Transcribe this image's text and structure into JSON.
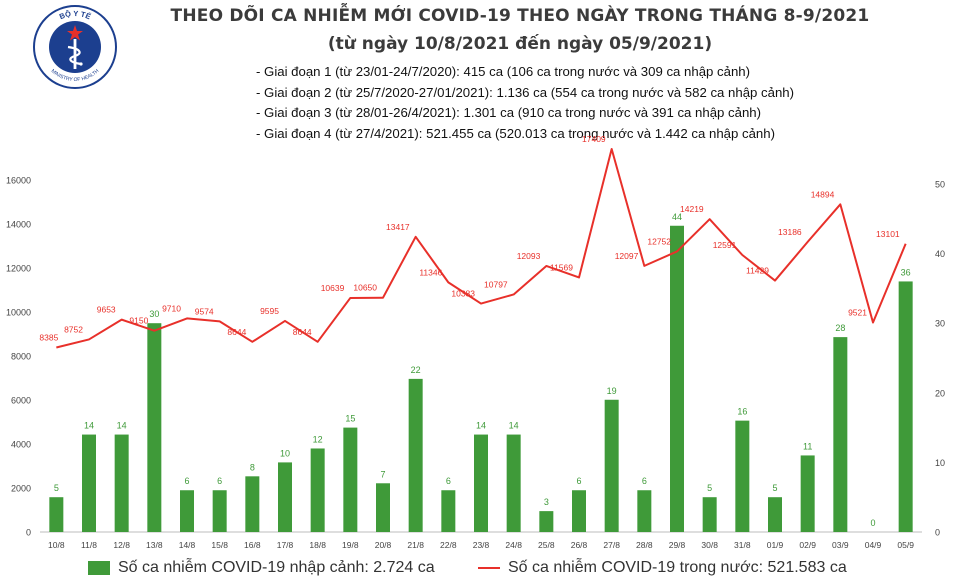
{
  "header": {
    "title": "THEO DÕI CA NHIỄM MỚI COVID-19 THEO NGÀY TRONG THÁNG 8-9/2021",
    "subtitle": "(từ ngày 10/8/2021 đến ngày 05/9/2021)"
  },
  "logo": {
    "text_top": "BỘ Y TẾ",
    "text_bottom": "MINISTRY OF HEALTH"
  },
  "notes": [
    "- Giai đoạn 1 (từ 23/01-24/7/2020): 415 ca (106 ca trong nước và 309 ca nhập cảnh)",
    "- Giai đoạn 2 (từ 25/7/2020-27/01/2021): 1.136 ca (554 ca trong nước và 582 ca nhập cảnh)",
    "- Giai đoạn 3 (từ 28/01-26/4/2021): 1.301 ca (910 ca trong nước và 391 ca nhập cảnh)",
    "- Giai đoạn 4 (từ 27/4/2021): 521.455 ca (520.013 ca trong nước và 1.442 ca nhập cảnh)"
  ],
  "colors": {
    "bar": "#3f9a39",
    "line": "#e8302a",
    "bar_label": "#3f9a39",
    "line_label": "#e8302a"
  },
  "chart_data": {
    "type": "bar",
    "categories": [
      "10/8",
      "11/8",
      "12/8",
      "13/8",
      "14/8",
      "15/8",
      "16/8",
      "17/8",
      "18/8",
      "19/8",
      "20/8",
      "21/8",
      "22/8",
      "23/8",
      "24/8",
      "25/8",
      "26/8",
      "27/8",
      "28/8",
      "29/8",
      "30/8",
      "31/8",
      "01/9",
      "02/9",
      "03/9",
      "04/9",
      "05/9"
    ],
    "series": [
      {
        "name": "Số ca nhiễm COVID-19 nhập cảnh: 2.724 ca",
        "kind": "bar",
        "axis": "right",
        "values": [
          5,
          14,
          14,
          30,
          6,
          6,
          8,
          10,
          12,
          15,
          7,
          22,
          6,
          14,
          14,
          3,
          6,
          19,
          6,
          44,
          5,
          16,
          5,
          11,
          28,
          0,
          36
        ]
      },
      {
        "name": "Số ca nhiễm COVID-19 trong nước: 521.583 ca",
        "kind": "line",
        "axis": "left",
        "values": [
          8385,
          8752,
          9653,
          9150,
          9710,
          9574,
          8644,
          9595,
          8644,
          10639,
          10650,
          13417,
          11346,
          10383,
          10797,
          12093,
          11569,
          17409,
          12097,
          12752,
          14219,
          12591,
          11429,
          13186,
          14894,
          9521,
          13101
        ]
      }
    ],
    "y_left": {
      "min": 0,
      "max": 16000,
      "ticks": [
        "0",
        "2000",
        "4000",
        "6000",
        "8000",
        "10000",
        "12000",
        "14000",
        "16000"
      ]
    },
    "y_right": {
      "min": 0,
      "max": 50,
      "ticks": [
        "0",
        "10",
        "20",
        "30",
        "40",
        "50"
      ]
    },
    "grid": false,
    "legend_position": "bottom"
  }
}
